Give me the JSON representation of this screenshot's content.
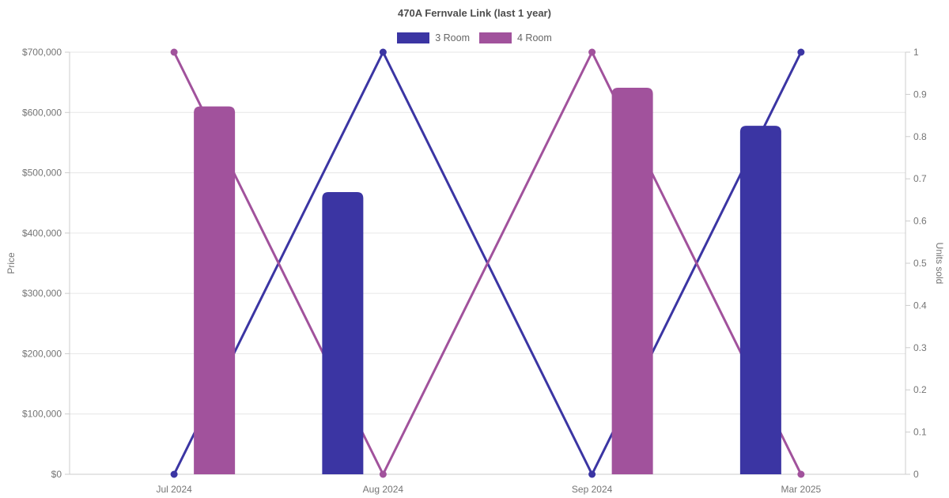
{
  "chart_data": {
    "type": "bar+line dual-axis combo",
    "title": "470A Fernvale Link (last 1 year)",
    "categories": [
      "Jul 2024",
      "Aug 2024",
      "Sep 2024",
      "Mar 2025"
    ],
    "series": [
      {
        "name": "3 Room",
        "color": "#3b35a3",
        "bar_values_price": [
          null,
          468000,
          null,
          578000
        ],
        "line_values_units_sold": [
          0,
          1,
          0,
          1
        ]
      },
      {
        "name": "4 Room",
        "color": "#a1529c",
        "bar_values_price": [
          610000,
          null,
          641000,
          null
        ],
        "line_values_units_sold": [
          1,
          0,
          1,
          0
        ]
      }
    ],
    "left_axis": {
      "label": "Price",
      "min": 0,
      "max": 700000,
      "tick_step": 100000,
      "tick_prefix": "$"
    },
    "right_axis": {
      "label": "Units sold",
      "min": 0,
      "max": 1,
      "tick_step": 0.1
    },
    "legend_position": "top-center",
    "grid": "horizontal-only",
    "colors": {
      "grid_line": "#e6e6e6",
      "axis_line": "#cccccc",
      "tick_text": "#757575",
      "title_text": "#4d4d4d",
      "legend_text": "#666666"
    }
  }
}
